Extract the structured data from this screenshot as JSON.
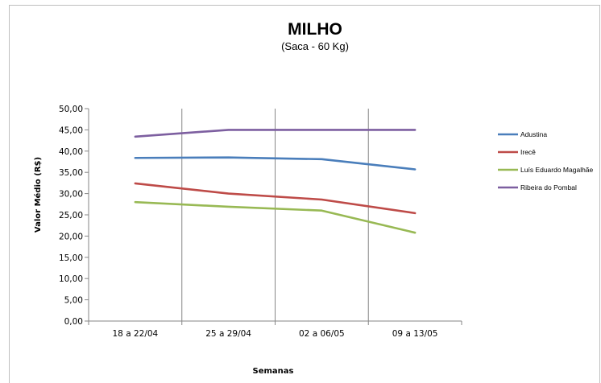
{
  "chart_data": {
    "type": "line",
    "title": "MILHO",
    "subtitle": "(Saca - 60 Kg)",
    "xlabel": "Semanas",
    "ylabel": "Valor Médio (R$)",
    "categories": [
      "18 a 22/04",
      "25 a 29/04",
      "02 a 06/05",
      "09 a 13/05"
    ],
    "ylim": [
      0,
      50
    ],
    "ytick_step": 5,
    "ytick_labels": [
      "0,00",
      "5,00",
      "10,00",
      "15,00",
      "20,00",
      "25,00",
      "30,00",
      "35,00",
      "40,00",
      "45,00",
      "50,00"
    ],
    "grid": "vertical",
    "legend_position": "right",
    "series": [
      {
        "name": "Adustina",
        "color": "#4a7ebb",
        "values": [
          38.4,
          38.5,
          38.1,
          35.7
        ]
      },
      {
        "name": "Irecê",
        "color": "#be4b48",
        "values": [
          32.4,
          30.0,
          28.6,
          25.4
        ]
      },
      {
        "name": "Luís Eduardo Magalhãe",
        "color": "#98b954",
        "values": [
          28.0,
          26.9,
          26.0,
          20.8
        ]
      },
      {
        "name": "Ribeira do Pombal",
        "color": "#7d5fa0",
        "values": [
          43.4,
          45.0,
          45.0,
          45.0
        ]
      }
    ]
  }
}
